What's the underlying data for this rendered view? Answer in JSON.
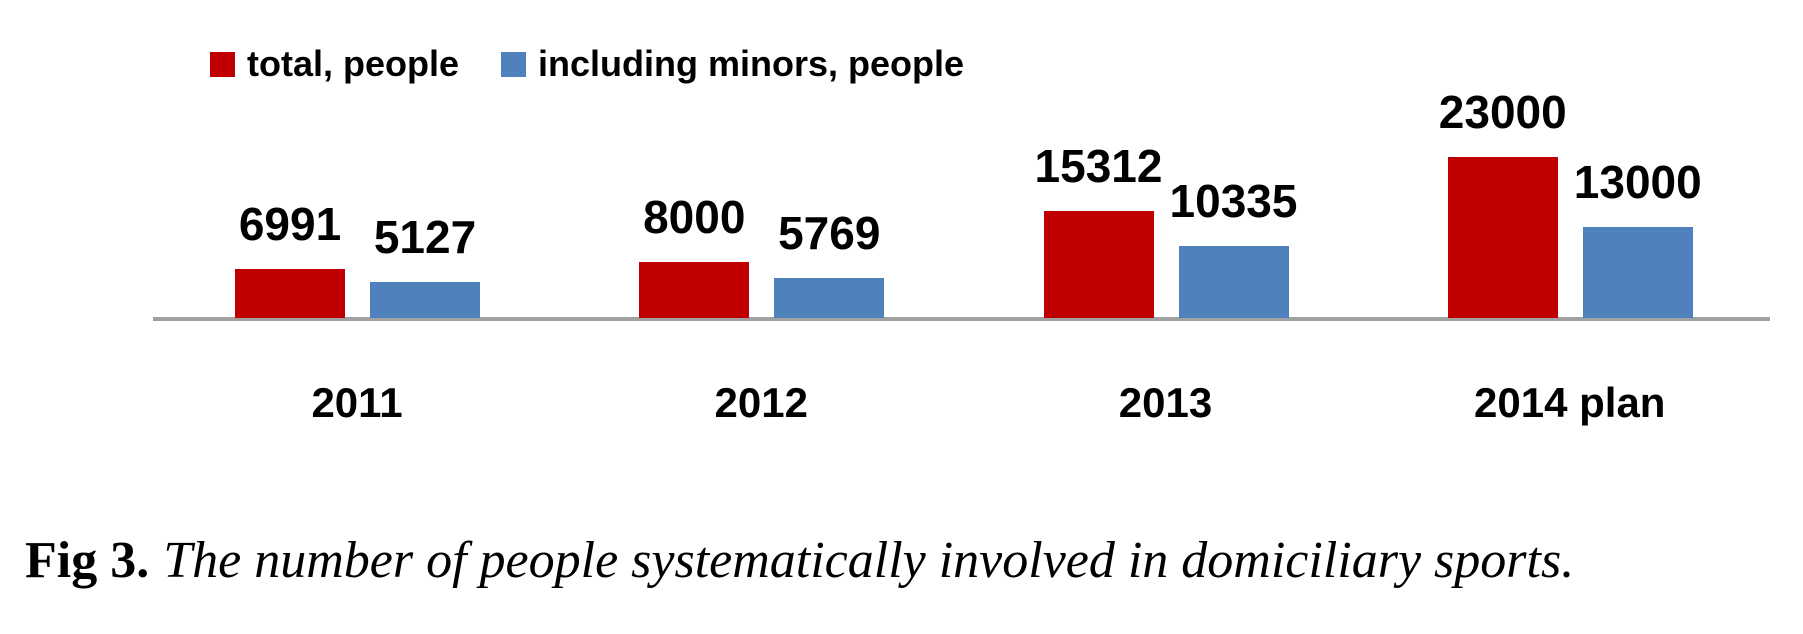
{
  "chart_data": {
    "type": "bar",
    "title": "",
    "xlabel": "",
    "ylabel": "",
    "categories": [
      "2011",
      "2012",
      "2013",
      "2014 plan"
    ],
    "series": [
      {
        "name": "total, people",
        "color": "#C00000",
        "values": [
          6991,
          8000,
          15312,
          23000
        ]
      },
      {
        "name": "including minors, people",
        "color": "#4F81BD",
        "values": [
          5127,
          5769,
          10335,
          13000
        ]
      }
    ],
    "ylim": [
      0,
      23000
    ],
    "grid": false,
    "axis_visible": "x-only",
    "axis_line_color": "#A1A1A1",
    "legend_position": "top-left",
    "data_labels": true
  },
  "caption": {
    "label": "Fig 3.",
    "text": "The number of people systematically involved in domiciliary sports."
  },
  "colors": {
    "series_total": "#C00000",
    "series_minors": "#4F81BD",
    "axis_line": "#A1A1A1",
    "text": "#000000",
    "background": "#FFFFFF"
  }
}
